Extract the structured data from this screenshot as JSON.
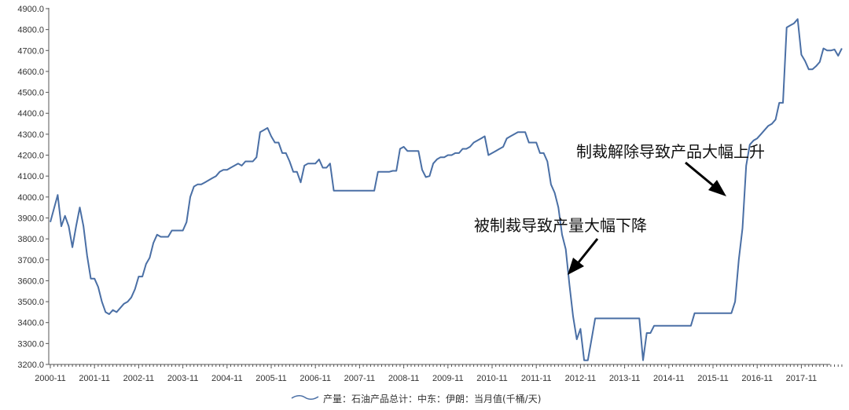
{
  "chart_data": {
    "type": "line",
    "title": "",
    "xlabel": "",
    "ylabel": "",
    "ylim": [
      3200,
      4900
    ],
    "y_ticks": [
      "3200.0",
      "3300.0",
      "3400.0",
      "3500.0",
      "3600.0",
      "3700.0",
      "3800.0",
      "3900.0",
      "4000.0",
      "4100.0",
      "4200.0",
      "4300.0",
      "4400.0",
      "4500.0",
      "4600.0",
      "4700.0",
      "4800.0",
      "4900.0"
    ],
    "x_ticks": [
      "2000-11",
      "2001-11",
      "2002-11",
      "2003-11",
      "2004-11",
      "2005-11",
      "2006-11",
      "2007-11",
      "2008-11",
      "2009-11",
      "2010-11",
      "2011-11",
      "2012-11",
      "2013-11",
      "2014-11",
      "2015-11",
      "2016-11",
      "2017-11"
    ],
    "grid": false,
    "legend_position": "bottom-center",
    "series": [
      {
        "name": "产量：石油产品总计：中东：伊朗：当月值(千桶/天)",
        "color": "#4a6fa5",
        "points": [
          [
            "2000-11",
            3880
          ],
          [
            "2001-01",
            4010
          ],
          [
            "2001-02",
            3860
          ],
          [
            "2001-03",
            3910
          ],
          [
            "2001-04",
            3860
          ],
          [
            "2001-05",
            3760
          ],
          [
            "2001-06",
            3860
          ],
          [
            "2001-07",
            3950
          ],
          [
            "2001-08",
            3860
          ],
          [
            "2001-09",
            3720
          ],
          [
            "2001-10",
            3610
          ],
          [
            "2001-11",
            3610
          ],
          [
            "2001-12",
            3570
          ],
          [
            "2002-01",
            3500
          ],
          [
            "2002-02",
            3450
          ],
          [
            "2002-03",
            3440
          ],
          [
            "2002-04",
            3460
          ],
          [
            "2002-05",
            3450
          ],
          [
            "2002-06",
            3470
          ],
          [
            "2002-07",
            3490
          ],
          [
            "2002-08",
            3500
          ],
          [
            "2002-09",
            3520
          ],
          [
            "2002-10",
            3560
          ],
          [
            "2002-11",
            3620
          ],
          [
            "2002-12",
            3620
          ],
          [
            "2003-01",
            3680
          ],
          [
            "2003-02",
            3710
          ],
          [
            "2003-03",
            3780
          ],
          [
            "2003-04",
            3820
          ],
          [
            "2003-05",
            3810
          ],
          [
            "2003-06",
            3810
          ],
          [
            "2003-07",
            3810
          ],
          [
            "2003-08",
            3840
          ],
          [
            "2003-09",
            3840
          ],
          [
            "2003-10",
            3840
          ],
          [
            "2003-11",
            3840
          ],
          [
            "2003-12",
            3880
          ],
          [
            "2004-01",
            4000
          ],
          [
            "2004-02",
            4050
          ],
          [
            "2004-03",
            4060
          ],
          [
            "2004-04",
            4060
          ],
          [
            "2004-05",
            4070
          ],
          [
            "2004-06",
            4080
          ],
          [
            "2004-07",
            4090
          ],
          [
            "2004-08",
            4100
          ],
          [
            "2004-09",
            4120
          ],
          [
            "2004-10",
            4130
          ],
          [
            "2004-11",
            4130
          ],
          [
            "2004-12",
            4140
          ],
          [
            "2005-01",
            4150
          ],
          [
            "2005-02",
            4160
          ],
          [
            "2005-03",
            4150
          ],
          [
            "2005-04",
            4170
          ],
          [
            "2005-05",
            4170
          ],
          [
            "2005-06",
            4170
          ],
          [
            "2005-07",
            4190
          ],
          [
            "2005-08",
            4310
          ],
          [
            "2005-09",
            4320
          ],
          [
            "2005-10",
            4330
          ],
          [
            "2005-11",
            4290
          ],
          [
            "2005-12",
            4260
          ],
          [
            "2006-01",
            4260
          ],
          [
            "2006-02",
            4210
          ],
          [
            "2006-03",
            4210
          ],
          [
            "2006-04",
            4170
          ],
          [
            "2006-05",
            4120
          ],
          [
            "2006-06",
            4120
          ],
          [
            "2006-07",
            4070
          ],
          [
            "2006-08",
            4150
          ],
          [
            "2006-09",
            4160
          ],
          [
            "2006-10",
            4160
          ],
          [
            "2006-11",
            4160
          ],
          [
            "2006-12",
            4180
          ],
          [
            "2007-01",
            4140
          ],
          [
            "2007-02",
            4140
          ],
          [
            "2007-03",
            4160
          ],
          [
            "2007-04",
            4030
          ],
          [
            "2007-05",
            4030
          ],
          [
            "2007-06",
            4030
          ],
          [
            "2007-07",
            4030
          ],
          [
            "2007-08",
            4030
          ],
          [
            "2007-09",
            4030
          ],
          [
            "2007-10",
            4030
          ],
          [
            "2007-11",
            4030
          ],
          [
            "2007-12",
            4030
          ],
          [
            "2008-01",
            4030
          ],
          [
            "2008-02",
            4030
          ],
          [
            "2008-03",
            4030
          ],
          [
            "2008-04",
            4120
          ],
          [
            "2008-05",
            4120
          ],
          [
            "2008-06",
            4120
          ],
          [
            "2008-07",
            4120
          ],
          [
            "2008-08",
            4125
          ],
          [
            "2008-09",
            4125
          ],
          [
            "2008-10",
            4230
          ],
          [
            "2008-11",
            4240
          ],
          [
            "2008-12",
            4220
          ],
          [
            "2009-01",
            4220
          ],
          [
            "2009-02",
            4220
          ],
          [
            "2009-03",
            4220
          ],
          [
            "2009-04",
            4130
          ],
          [
            "2009-05",
            4095
          ],
          [
            "2009-06",
            4100
          ],
          [
            "2009-07",
            4160
          ],
          [
            "2009-08",
            4180
          ],
          [
            "2009-09",
            4190
          ],
          [
            "2009-10",
            4190
          ],
          [
            "2009-11",
            4200
          ],
          [
            "2009-12",
            4200
          ],
          [
            "2010-01",
            4210
          ],
          [
            "2010-02",
            4210
          ],
          [
            "2010-03",
            4230
          ],
          [
            "2010-04",
            4230
          ],
          [
            "2010-05",
            4240
          ],
          [
            "2010-06",
            4260
          ],
          [
            "2010-07",
            4270
          ],
          [
            "2010-08",
            4280
          ],
          [
            "2010-09",
            4290
          ],
          [
            "2010-10",
            4200
          ],
          [
            "2010-11",
            4210
          ],
          [
            "2010-12",
            4220
          ],
          [
            "2011-01",
            4230
          ],
          [
            "2011-02",
            4240
          ],
          [
            "2011-03",
            4280
          ],
          [
            "2011-04",
            4290
          ],
          [
            "2011-05",
            4300
          ],
          [
            "2011-06",
            4310
          ],
          [
            "2011-07",
            4310
          ],
          [
            "2011-08",
            4310
          ],
          [
            "2011-09",
            4260
          ],
          [
            "2011-10",
            4260
          ],
          [
            "2011-11",
            4260
          ],
          [
            "2011-12",
            4210
          ],
          [
            "2012-01",
            4210
          ],
          [
            "2012-02",
            4170
          ],
          [
            "2012-03",
            4060
          ],
          [
            "2012-04",
            4020
          ],
          [
            "2012-05",
            3950
          ],
          [
            "2012-06",
            3820
          ],
          [
            "2012-07",
            3750
          ],
          [
            "2012-08",
            3580
          ],
          [
            "2012-09",
            3430
          ],
          [
            "2012-10",
            3320
          ],
          [
            "2012-11",
            3370
          ],
          [
            "2012-12",
            3220
          ],
          [
            "2013-01",
            3220
          ],
          [
            "2013-02",
            3320
          ],
          [
            "2013-03",
            3420
          ],
          [
            "2013-04",
            3420
          ],
          [
            "2013-05",
            3420
          ],
          [
            "2013-06",
            3420
          ],
          [
            "2013-07",
            3420
          ],
          [
            "2013-08",
            3420
          ],
          [
            "2013-09",
            3420
          ],
          [
            "2013-10",
            3420
          ],
          [
            "2013-11",
            3420
          ],
          [
            "2013-12",
            3420
          ],
          [
            "2014-01",
            3420
          ],
          [
            "2014-02",
            3420
          ],
          [
            "2014-03",
            3420
          ],
          [
            "2014-04",
            3220
          ],
          [
            "2014-05",
            3350
          ],
          [
            "2014-06",
            3350
          ],
          [
            "2014-07",
            3385
          ],
          [
            "2014-08",
            3385
          ],
          [
            "2014-09",
            3385
          ],
          [
            "2014-10",
            3385
          ],
          [
            "2014-11",
            3385
          ],
          [
            "2014-12",
            3385
          ],
          [
            "2015-01",
            3385
          ],
          [
            "2015-02",
            3385
          ],
          [
            "2015-03",
            3385
          ],
          [
            "2015-04",
            3385
          ],
          [
            "2015-05",
            3385
          ],
          [
            "2015-06",
            3445
          ],
          [
            "2015-07",
            3445
          ],
          [
            "2015-08",
            3445
          ],
          [
            "2015-09",
            3445
          ],
          [
            "2015-10",
            3445
          ],
          [
            "2015-11",
            3445
          ],
          [
            "2015-12",
            3445
          ],
          [
            "2016-01",
            3445
          ],
          [
            "2016-02",
            3445
          ],
          [
            "2016-03",
            3445
          ],
          [
            "2016-04",
            3445
          ],
          [
            "2016-05",
            3500
          ],
          [
            "2016-06",
            3700
          ],
          [
            "2016-07",
            3850
          ],
          [
            "2016-08",
            4150
          ],
          [
            "2016-09",
            4250
          ],
          [
            "2016-10",
            4270
          ],
          [
            "2016-11",
            4280
          ],
          [
            "2016-12",
            4300
          ],
          [
            "2017-01",
            4320
          ],
          [
            "2017-02",
            4340
          ],
          [
            "2017-03",
            4350
          ],
          [
            "2017-04",
            4370
          ],
          [
            "2017-05",
            4450
          ],
          [
            "2017-06",
            4450
          ],
          [
            "2017-07",
            4810
          ],
          [
            "2017-08",
            4820
          ],
          [
            "2017-09",
            4830
          ],
          [
            "2017-10",
            4850
          ],
          [
            "2017-11",
            4680
          ],
          [
            "2017-12",
            4650
          ],
          [
            "2018-01",
            4610
          ],
          [
            "2018-02",
            4610
          ],
          [
            "2018-03",
            4625
          ],
          [
            "2018-04",
            4645
          ],
          [
            "2018-05",
            4710
          ],
          [
            "2018-06",
            4700
          ],
          [
            "2018-07",
            4700
          ],
          [
            "2018-08",
            4705
          ],
          [
            "2018-09",
            4675
          ],
          [
            "2018-10",
            4710
          ]
        ]
      }
    ],
    "annotations": [
      {
        "text": "被制裁导致产量大幅下降",
        "arrow_to": [
          "2012-06",
          3590
        ]
      },
      {
        "text": "制裁解除导致产品大幅上升",
        "arrow_to": [
          "2016-07",
          3980
        ]
      }
    ]
  }
}
